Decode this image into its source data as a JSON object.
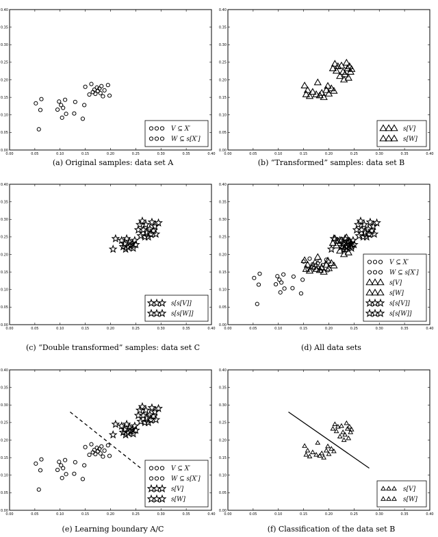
{
  "chart_data": [
    {
      "id": "a",
      "type": "scatter",
      "title": "",
      "caption": "(a) Original samples: data set A",
      "xlim": [
        0,
        0.4
      ],
      "ylim": [
        0,
        0.4
      ],
      "x_ticks": [
        "0.00",
        "0.05",
        "0.10",
        "0.15",
        "0.20",
        "0.25",
        "0.30",
        "0.35",
        "0.40"
      ],
      "y_ticks": [
        "0.00",
        "0.05",
        "0.10",
        "0.15",
        "0.20",
        "0.25",
        "0.30",
        "0.35",
        "0.40"
      ],
      "grid": false,
      "legend_position": "bottom-right",
      "series": [
        {
          "name": "V ⊆ X′",
          "marker": "circle",
          "points": [
            [
              0.052,
              0.133
            ],
            [
              0.058,
              0.059
            ],
            [
              0.061,
              0.114
            ],
            [
              0.063,
              0.145
            ],
            [
              0.095,
              0.115
            ],
            [
              0.098,
              0.138
            ],
            [
              0.102,
              0.128
            ],
            [
              0.104,
              0.092
            ],
            [
              0.106,
              0.12
            ],
            [
              0.11,
              0.143
            ],
            [
              0.112,
              0.103
            ],
            [
              0.128,
              0.104
            ],
            [
              0.13,
              0.137
            ],
            [
              0.145,
              0.089
            ],
            [
              0.148,
              0.128
            ]
          ]
        },
        {
          "name": "W ⊆ s[X′]",
          "marker": "circle",
          "points": [
            [
              0.15,
              0.18
            ],
            [
              0.158,
              0.158
            ],
            [
              0.162,
              0.188
            ],
            [
              0.165,
              0.165
            ],
            [
              0.168,
              0.172
            ],
            [
              0.17,
              0.16
            ],
            [
              0.173,
              0.178
            ],
            [
              0.175,
              0.168
            ],
            [
              0.178,
              0.175
            ],
            [
              0.18,
              0.162
            ],
            [
              0.182,
              0.182
            ],
            [
              0.185,
              0.153
            ],
            [
              0.188,
              0.17
            ],
            [
              0.195,
              0.185
            ],
            [
              0.198,
              0.155
            ]
          ]
        }
      ],
      "boundary": null
    },
    {
      "id": "b",
      "type": "scatter",
      "title": "",
      "caption": "(b) “Transformed” samples: data set B",
      "xlim": [
        0,
        0.4
      ],
      "ylim": [
        0,
        0.4
      ],
      "x_ticks": [
        "0.00",
        "0.05",
        "0.10",
        "0.15",
        "0.20",
        "0.25",
        "0.30",
        "0.35",
        "0.40"
      ],
      "y_ticks": [
        "0.00",
        "0.05",
        "0.10",
        "0.15",
        "0.20",
        "0.25",
        "0.30",
        "0.35",
        "0.40"
      ],
      "grid": false,
      "legend_position": "bottom-right",
      "series": [
        {
          "name": "s[V]",
          "marker": "triangle",
          "points": [
            [
              0.152,
              0.183
            ],
            [
              0.155,
              0.158
            ],
            [
              0.158,
              0.17
            ],
            [
              0.162,
              0.153
            ],
            [
              0.168,
              0.165
            ],
            [
              0.175,
              0.158
            ],
            [
              0.178,
              0.192
            ],
            [
              0.182,
              0.155
            ],
            [
              0.186,
              0.162
            ],
            [
              0.19,
              0.15
            ],
            [
              0.195,
              0.17
            ],
            [
              0.198,
              0.182
            ],
            [
              0.2,
              0.16
            ],
            [
              0.205,
              0.175
            ],
            [
              0.21,
              0.168
            ]
          ]
        },
        {
          "name": "s[W]",
          "marker": "triangle",
          "points": [
            [
              0.208,
              0.232
            ],
            [
              0.212,
              0.245
            ],
            [
              0.215,
              0.225
            ],
            [
              0.218,
              0.238
            ],
            [
              0.222,
              0.21
            ],
            [
              0.225,
              0.24
            ],
            [
              0.228,
              0.222
            ],
            [
              0.23,
              0.2
            ],
            [
              0.232,
              0.215
            ],
            [
              0.235,
              0.248
            ],
            [
              0.237,
              0.232
            ],
            [
              0.239,
              0.205
            ],
            [
              0.241,
              0.238
            ],
            [
              0.243,
              0.222
            ],
            [
              0.245,
              0.23
            ]
          ]
        }
      ],
      "boundary": null
    },
    {
      "id": "c",
      "type": "scatter",
      "title": "",
      "caption": "(c) “Double transformed” samples: data set C",
      "xlim": [
        0,
        0.4
      ],
      "ylim": [
        0,
        0.4
      ],
      "x_ticks": [
        "0.00",
        "0.05",
        "0.10",
        "0.15",
        "0.20",
        "0.25",
        "0.30",
        "0.35",
        "0.40"
      ],
      "y_ticks": [
        "0.00",
        "0.05",
        "0.10",
        "0.15",
        "0.20",
        "0.25",
        "0.30",
        "0.35",
        "0.40"
      ],
      "grid": false,
      "legend_position": "bottom-right",
      "series": [
        {
          "name": "s[s[V]]",
          "marker": "star",
          "points": [
            [
              0.205,
              0.215
            ],
            [
              0.21,
              0.245
            ],
            [
              0.222,
              0.24
            ],
            [
              0.225,
              0.222
            ],
            [
              0.228,
              0.23
            ],
            [
              0.23,
              0.215
            ],
            [
              0.232,
              0.245
            ],
            [
              0.235,
              0.22
            ],
            [
              0.238,
              0.235
            ],
            [
              0.24,
              0.225
            ],
            [
              0.243,
              0.23
            ],
            [
              0.245,
              0.218
            ],
            [
              0.248,
              0.24
            ],
            [
              0.25,
              0.228
            ],
            [
              0.255,
              0.27
            ]
          ]
        },
        {
          "name": "s[s[W]]",
          "marker": "star",
          "points": [
            [
              0.258,
              0.285
            ],
            [
              0.26,
              0.253
            ],
            [
              0.263,
              0.295
            ],
            [
              0.265,
              0.27
            ],
            [
              0.268,
              0.25
            ],
            [
              0.27,
              0.285
            ],
            [
              0.272,
              0.262
            ],
            [
              0.275,
              0.25
            ],
            [
              0.278,
              0.272
            ],
            [
              0.28,
              0.257
            ],
            [
              0.282,
              0.292
            ],
            [
              0.285,
              0.268
            ],
            [
              0.288,
              0.28
            ],
            [
              0.29,
              0.258
            ],
            [
              0.295,
              0.29
            ]
          ]
        }
      ],
      "boundary": null
    },
    {
      "id": "d",
      "type": "scatter",
      "title": "",
      "caption": "(d) All data sets",
      "xlim": [
        0,
        0.4
      ],
      "ylim": [
        0,
        0.4
      ],
      "x_ticks": [
        "0.00",
        "0.05",
        "0.10",
        "0.15",
        "0.20",
        "0.25",
        "0.30",
        "0.35",
        "0.40"
      ],
      "y_ticks": [
        "0.00",
        "0.05",
        "0.10",
        "0.15",
        "0.20",
        "0.25",
        "0.30",
        "0.35",
        "0.40"
      ],
      "grid": false,
      "legend_position": "bottom-right",
      "series": [
        {
          "name": "V ⊆ X′",
          "marker": "circle",
          "ref": "a.0"
        },
        {
          "name": "W ⊆ s[X′]",
          "marker": "circle",
          "ref": "a.1"
        },
        {
          "name": "s[V]",
          "marker": "triangle",
          "ref": "b.0"
        },
        {
          "name": "s[W]",
          "marker": "triangle",
          "ref": "b.1"
        },
        {
          "name": "s[s[V]]",
          "marker": "star",
          "ref": "c.0"
        },
        {
          "name": "s[s[W]]",
          "marker": "star",
          "ref": "c.1"
        }
      ],
      "boundary": null
    },
    {
      "id": "e",
      "type": "scatter",
      "title": "",
      "caption": "(e) Learning boundary A/C",
      "xlim": [
        0,
        0.4
      ],
      "ylim": [
        0,
        0.4
      ],
      "x_ticks": [
        "0.00",
        "0.05",
        "0.10",
        "0.15",
        "0.20",
        "0.25",
        "0.30",
        "0.35",
        "0.40"
      ],
      "y_ticks": [
        "0.00",
        "0.05",
        "0.10",
        "0.15",
        "0.20",
        "0.25",
        "0.30",
        "0.35",
        "0.40"
      ],
      "grid": false,
      "legend_position": "bottom-right",
      "series": [
        {
          "name": "V ⊆ X′",
          "marker": "circle",
          "ref": "a.0"
        },
        {
          "name": "W ⊆ s[X′]",
          "marker": "circle",
          "ref": "a.1"
        },
        {
          "name": "s[V]",
          "marker": "star",
          "ref": "c.0"
        },
        {
          "name": "s[W]",
          "marker": "star",
          "ref": "c.1"
        }
      ],
      "boundary": {
        "style": "dashed",
        "points": [
          [
            0.12,
            0.28
          ],
          [
            0.26,
            0.12
          ]
        ]
      }
    },
    {
      "id": "f",
      "type": "scatter",
      "title": "",
      "caption": "(f) Classification of the data set B",
      "xlim": [
        0,
        0.4
      ],
      "ylim": [
        0,
        0.4
      ],
      "x_ticks": [
        "0.00",
        "0.05",
        "0.10",
        "0.15",
        "0.20",
        "0.25",
        "0.30",
        "0.35",
        "0.40"
      ],
      "y_ticks": [
        "0.00",
        "0.05",
        "0.10",
        "0.15",
        "0.20",
        "0.25",
        "0.30",
        "0.35",
        "0.40"
      ],
      "grid": false,
      "legend_position": "bottom-right",
      "series": [
        {
          "name": "s[V]",
          "marker": "triangle-small",
          "ref": "b.0"
        },
        {
          "name": "s[W]",
          "marker": "triangle-small",
          "ref": "b.1"
        }
      ],
      "boundary": {
        "style": "solid",
        "points": [
          [
            0.12,
            0.28
          ],
          [
            0.28,
            0.12
          ]
        ]
      }
    }
  ]
}
